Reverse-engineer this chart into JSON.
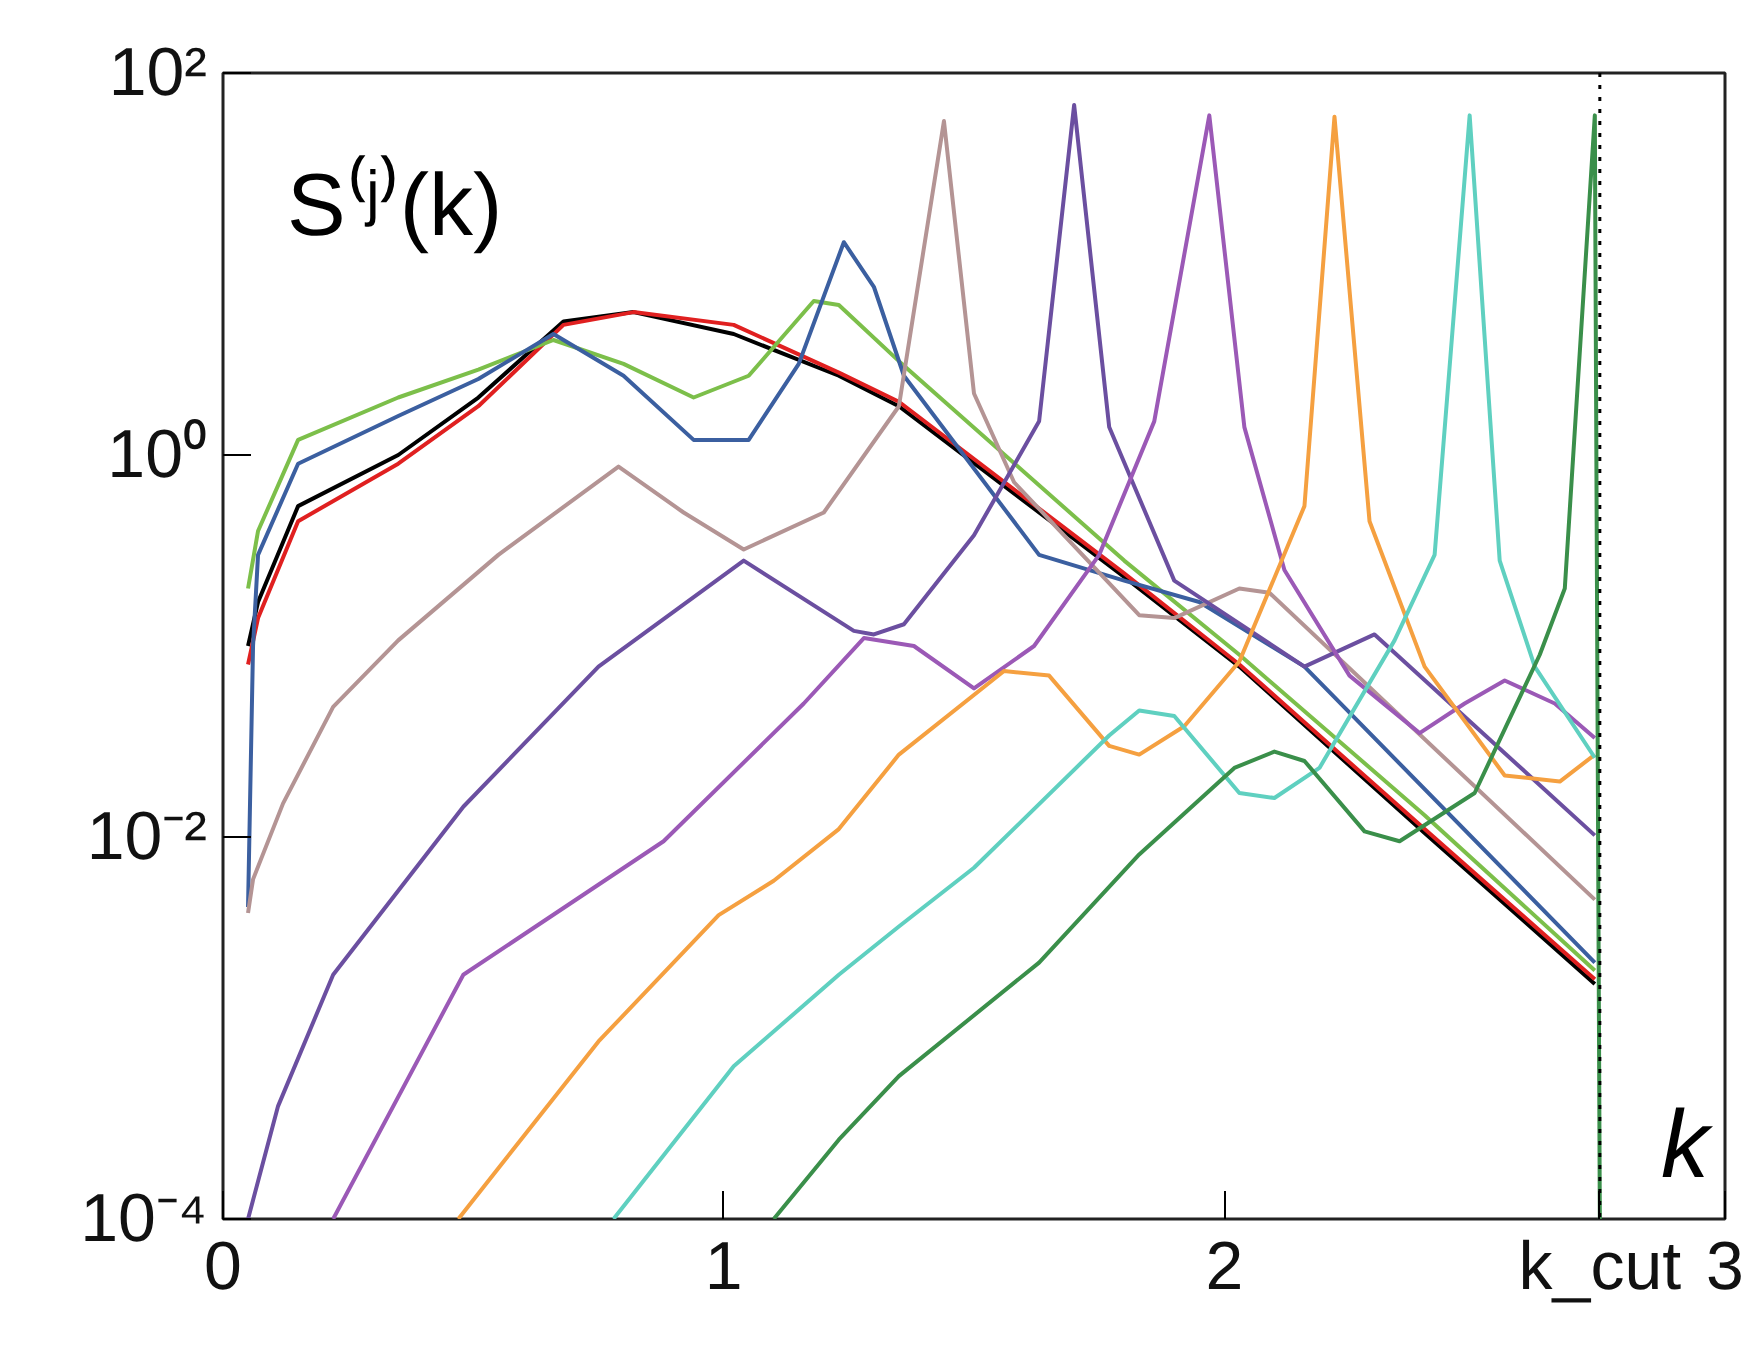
{
  "chart_data": {
    "type": "line",
    "ylabel": "S⁽ʲ⁾(k)",
    "xlabel": "k",
    "log": "y",
    "grid": false,
    "line_style": "solid",
    "marker": "none",
    "xlim": [
      0,
      3
    ],
    "xticks": [
      0,
      1,
      2,
      {
        "value": 2.75,
        "label": "k_cut"
      },
      3
    ],
    "ylim": [
      0.0001,
      100
    ],
    "yticks": [
      {
        "value": 0.0001,
        "label": "10⁻⁴"
      },
      {
        "value": 0.01,
        "label": "10⁻²"
      },
      {
        "value": 1,
        "label": "10⁰"
      },
      {
        "value": 100,
        "label": "10²"
      }
    ],
    "ref_lines": [
      {
        "axis": "x",
        "value": 2.75,
        "color": "#000000",
        "line_style": "dotted"
      }
    ],
    "series": [
      {
        "color": "#000000",
        "x": [
          0.05,
          0.07,
          0.15,
          0.35,
          0.51,
          0.68,
          0.82,
          1.02,
          1.23,
          1.35,
          1.8,
          2.03,
          2.4,
          2.74
        ],
        "values": [
          0.1,
          0.17,
          0.54,
          1.0,
          2.0,
          5.0,
          5.6,
          4.3,
          2.6,
          1.8,
          0.23,
          0.078,
          0.0105,
          0.0017
        ]
      },
      {
        "color": "#e02020",
        "x": [
          0.05,
          0.07,
          0.15,
          0.35,
          0.51,
          0.68,
          0.82,
          1.02,
          1.23,
          1.35,
          1.8,
          2.03,
          2.4,
          2.74
        ],
        "values": [
          0.08,
          0.14,
          0.45,
          0.9,
          1.8,
          4.8,
          5.6,
          4.8,
          2.7,
          1.9,
          0.24,
          0.08,
          0.011,
          0.0018
        ]
      },
      {
        "color": "#7cbf4a",
        "x": [
          0.05,
          0.07,
          0.15,
          0.35,
          0.51,
          0.66,
          0.8,
          0.94,
          1.05,
          1.18,
          1.23,
          1.35,
          1.8,
          2.03,
          2.4,
          2.74
        ],
        "values": [
          0.2,
          0.4,
          1.2,
          2.0,
          2.8,
          4.0,
          3.0,
          2.0,
          2.6,
          6.4,
          6.1,
          3.1,
          0.28,
          0.09,
          0.013,
          0.002
        ]
      },
      {
        "color": "#3b5fa0",
        "x": [
          0.05,
          0.06,
          0.07,
          0.15,
          0.35,
          0.51,
          0.66,
          0.8,
          0.94,
          1.05,
          1.15,
          1.24,
          1.3,
          1.36,
          1.63,
          1.8,
          1.95,
          2.16,
          2.74
        ],
        "values": [
          0.0043,
          0.1,
          0.3,
          0.9,
          1.6,
          2.5,
          4.3,
          2.6,
          1.2,
          1.2,
          3.0,
          13,
          7.6,
          2.6,
          0.3,
          0.22,
          0.17,
          0.078,
          0.0022
        ]
      },
      {
        "color": "#b49494",
        "x": [
          0.05,
          0.06,
          0.12,
          0.22,
          0.35,
          0.55,
          0.79,
          0.92,
          1.04,
          1.2,
          1.35,
          1.44,
          1.5,
          1.58,
          1.83,
          1.9,
          2.03,
          2.09,
          2.74
        ],
        "values": [
          0.004,
          0.006,
          0.015,
          0.048,
          0.107,
          0.3,
          0.87,
          0.5,
          0.32,
          0.5,
          1.8,
          56,
          2.1,
          0.72,
          0.145,
          0.14,
          0.2,
          0.19,
          0.0047
        ]
      },
      {
        "color": "#6b4fa0",
        "x": [
          0.05,
          0.11,
          0.22,
          0.48,
          0.75,
          1.04,
          1.26,
          1.3,
          1.36,
          1.5,
          1.63,
          1.7,
          1.77,
          1.9,
          2.16,
          2.3,
          2.74
        ],
        "values": [
          0.0001,
          0.00039,
          0.0019,
          0.0144,
          0.078,
          0.28,
          0.12,
          0.115,
          0.13,
          0.38,
          1.5,
          68,
          1.4,
          0.22,
          0.078,
          0.115,
          0.0102
        ]
      },
      {
        "color": "#9b59b6",
        "x": [
          0.22,
          0.48,
          0.88,
          1.16,
          1.28,
          1.38,
          1.5,
          1.62,
          1.75,
          1.86,
          1.97,
          2.04,
          2.12,
          2.25,
          2.39,
          2.48,
          2.56,
          2.66,
          2.74
        ],
        "values": [
          0.0001,
          0.0019,
          0.0095,
          0.05,
          0.11,
          0.1,
          0.06,
          0.1,
          0.3,
          1.5,
          60,
          1.4,
          0.25,
          0.07,
          0.035,
          0.05,
          0.066,
          0.05,
          0.033
        ]
      },
      {
        "color": "#f5a040",
        "x": [
          0.47,
          0.75,
          0.99,
          1.1,
          1.23,
          1.35,
          1.56,
          1.65,
          1.77,
          1.83,
          1.92,
          2.03,
          2.16,
          2.22,
          2.29,
          2.4,
          2.56,
          2.67,
          2.74
        ],
        "values": [
          0.0001,
          0.00085,
          0.0039,
          0.0059,
          0.011,
          0.027,
          0.074,
          0.07,
          0.03,
          0.027,
          0.038,
          0.083,
          0.54,
          59,
          0.45,
          0.078,
          0.021,
          0.0195,
          0.027
        ]
      },
      {
        "color": "#5fd0c0",
        "x": [
          0.78,
          1.02,
          1.23,
          1.35,
          1.5,
          1.77,
          1.83,
          1.9,
          2.03,
          2.1,
          2.19,
          2.34,
          2.42,
          2.49,
          2.55,
          2.62,
          2.74
        ],
        "values": [
          0.0001,
          0.00063,
          0.0019,
          0.0034,
          0.0069,
          0.034,
          0.046,
          0.043,
          0.017,
          0.016,
          0.023,
          0.107,
          0.3,
          60,
          0.28,
          0.078,
          0.026
        ]
      },
      {
        "color": "#3a8f4a",
        "x": [
          1.1,
          1.23,
          1.35,
          1.63,
          1.83,
          2.02,
          2.1,
          2.16,
          2.28,
          2.35,
          2.5,
          2.63,
          2.68,
          2.74,
          2.75
        ],
        "values": [
          0.0001,
          0.00026,
          0.00056,
          0.0022,
          0.0081,
          0.023,
          0.028,
          0.025,
          0.0107,
          0.0095,
          0.017,
          0.09,
          0.2,
          60,
          0.0001
        ]
      }
    ]
  }
}
